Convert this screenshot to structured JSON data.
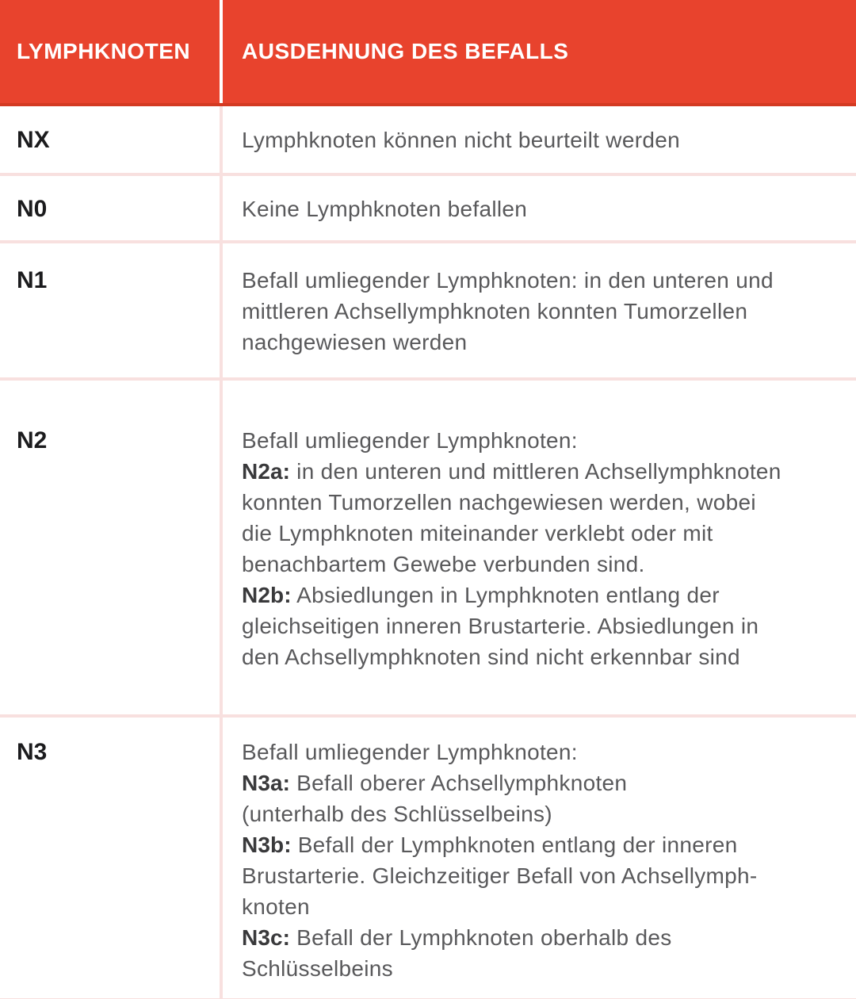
{
  "colors": {
    "accent": "#E8432D",
    "accent_dark_edge": "#D33A22",
    "divider_pink": "#F8E0DF",
    "header_text": "#FFFFFF",
    "label_text": "#1B1B1D",
    "body_text": "#59595B",
    "bold_term_text": "#39393B"
  },
  "table": {
    "headers": [
      {
        "label": "LYMPHKNOTEN"
      },
      {
        "label": "AUSDEHNUNG DES BEFALLS"
      }
    ],
    "rows": [
      {
        "label": "NX",
        "lines": [
          {
            "text": "Lymphknoten können nicht beurteilt werden"
          }
        ]
      },
      {
        "label": "N0",
        "lines": [
          {
            "text": "Keine Lymphknoten befallen"
          }
        ]
      },
      {
        "label": "N1",
        "lines": [
          {
            "text": "Befall umliegender Lymphknoten: in den unteren und"
          },
          {
            "text": "mittleren Achsellymphknoten konnten Tumorzellen"
          },
          {
            "text": "nachgewiesen werden"
          }
        ]
      },
      {
        "label": "N2",
        "lines": [
          {
            "text": "Befall umliegender Lymphknoten:"
          },
          {
            "bold": "N2a:",
            "text": " in den unteren und mittleren Achsellymphknoten"
          },
          {
            "text": "konnten Tumorzellen nachgewiesen werden, wobei"
          },
          {
            "text": "die Lymphknoten miteinander verklebt oder mit"
          },
          {
            "text": "benachbartem Gewebe verbunden sind."
          },
          {
            "bold": "N2b:",
            "text": " Absiedlungen in Lymphknoten entlang der"
          },
          {
            "text": "gleichseitigen inneren Brustarterie. Absiedlungen in"
          },
          {
            "text": "den Achsellymphknoten sind nicht erkennbar sind"
          }
        ]
      },
      {
        "label": "N3",
        "lines": [
          {
            "text": "Befall umliegender Lymphknoten:"
          },
          {
            "bold": "N3a:",
            "text": " Befall oberer Achsellymphknoten"
          },
          {
            "text": "(unterhalb des Schlüsselbeins)"
          },
          {
            "bold": "N3b:",
            "text": " Befall der Lymphknoten entlang der inneren"
          },
          {
            "text": "Brustarterie. Gleichzeitiger Befall von Achsellymph-"
          },
          {
            "text": "knoten"
          },
          {
            "bold": "N3c:",
            "text": " Befall der Lymphknoten oberhalb des"
          },
          {
            "text": "Schlüsselbeins"
          }
        ]
      }
    ]
  }
}
